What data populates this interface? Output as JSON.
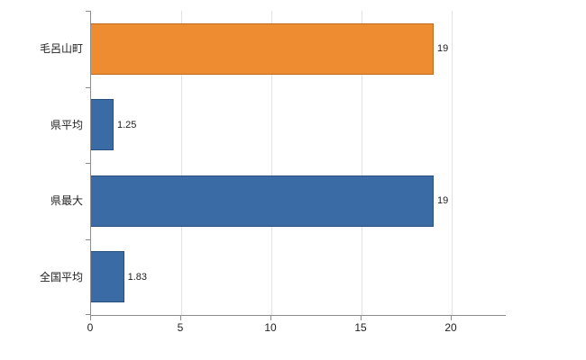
{
  "chart_data": {
    "type": "bar",
    "orientation": "horizontal",
    "title": "",
    "xlabel": "",
    "ylabel": "",
    "categories": [
      "毛呂山町",
      "県平均",
      "県最大",
      "全国平均"
    ],
    "values": [
      19,
      1.25,
      19,
      1.83
    ],
    "value_labels": [
      "19",
      "1.25",
      "19",
      "1.83"
    ],
    "bar_colors": [
      "#ee8c31",
      "#3b6ba5",
      "#3b6ba5",
      "#3b6ba5"
    ],
    "bar_border_colors": [
      "#b96c1f",
      "#28507f",
      "#28507f",
      "#28507f"
    ],
    "xlim": [
      0,
      23
    ],
    "xticks": [
      0,
      5,
      10,
      15,
      20
    ],
    "xtick_labels": [
      "0",
      "5",
      "10",
      "15",
      "20"
    ],
    "grid": true,
    "legend": "none",
    "colors": {
      "background": "#ffffff",
      "gridline": "#e3e3e3",
      "axis": "#8c8c8c",
      "text": "#222222"
    }
  }
}
